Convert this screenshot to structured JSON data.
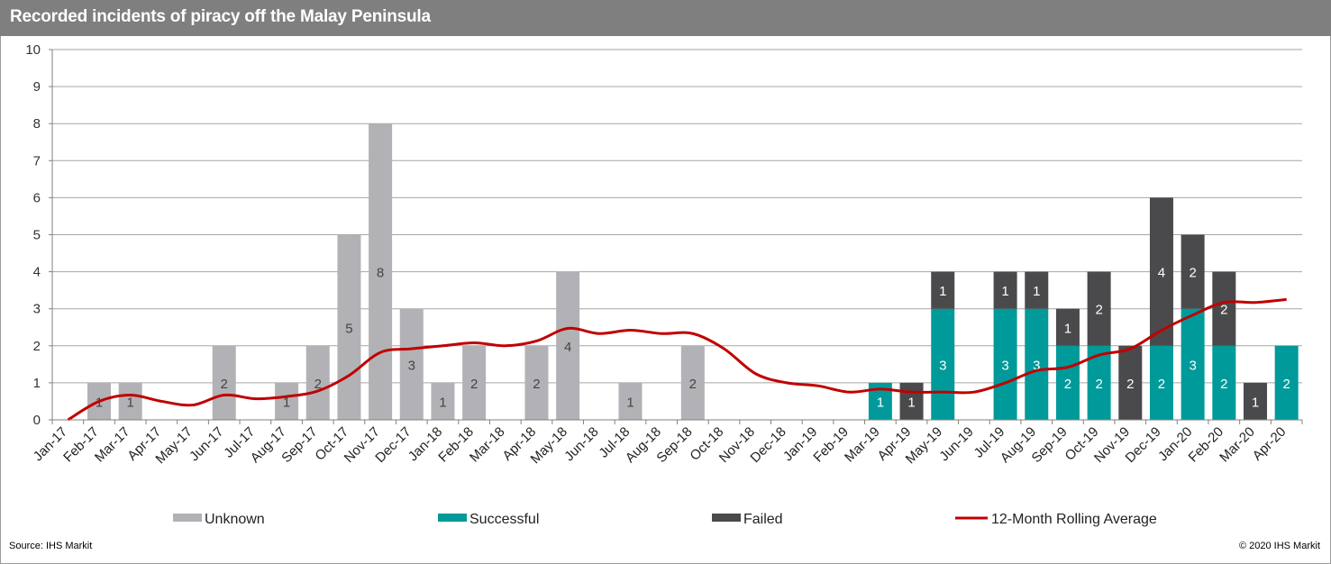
{
  "header": {
    "title": "Recorded incidents of piracy off the Malay Peninsula"
  },
  "footer": {
    "source": "Source: IHS Markit",
    "copyright": "© 2020 IHS Markit"
  },
  "colors": {
    "unknown": "#b2b2b6",
    "successful": "#009a9a",
    "failed": "#4a4a4c",
    "rolling": "#c00000",
    "grid": "#a6a6a6"
  },
  "chart_data": {
    "type": "bar",
    "stacked": true,
    "title": "Recorded incidents of piracy off the Malay Peninsula",
    "ylim": [
      0,
      10
    ],
    "yticks": [
      0,
      1,
      2,
      3,
      4,
      5,
      6,
      7,
      8,
      9,
      10
    ],
    "grid": true,
    "legend_placement": "bottom",
    "categories": [
      "Jan-17",
      "Feb-17",
      "Mar-17",
      "Apr-17",
      "May-17",
      "Jun-17",
      "Jul-17",
      "Aug-17",
      "Sep-17",
      "Oct-17",
      "Nov-17",
      "Dec-17",
      "Jan-18",
      "Feb-18",
      "Mar-18",
      "Apr-18",
      "May-18",
      "Jun-18",
      "Jul-18",
      "Aug-18",
      "Sep-18",
      "Oct-18",
      "Nov-18",
      "Dec-18",
      "Jan-19",
      "Feb-19",
      "Mar-19",
      "Apr-19",
      "May-19",
      "Jun-19",
      "Jul-19",
      "Aug-19",
      "Sep-19",
      "Oct-19",
      "Nov-19",
      "Dec-19",
      "Jan-20",
      "Feb-20",
      "Mar-20",
      "Apr-20"
    ],
    "series": [
      {
        "name": "Unknown",
        "type": "bar",
        "color": "#b2b2b6",
        "values": [
          0,
          1,
          1,
          0,
          0,
          2,
          0,
          1,
          2,
          5,
          8,
          3,
          1,
          2,
          0,
          2,
          4,
          0,
          1,
          0,
          2,
          0,
          0,
          0,
          0,
          0,
          0,
          0,
          0,
          0,
          0,
          0,
          0,
          0,
          0,
          0,
          0,
          0,
          0,
          0
        ]
      },
      {
        "name": "Successful",
        "type": "bar",
        "color": "#009a9a",
        "values": [
          0,
          0,
          0,
          0,
          0,
          0,
          0,
          0,
          0,
          0,
          0,
          0,
          0,
          0,
          0,
          0,
          0,
          0,
          0,
          0,
          0,
          0,
          0,
          0,
          0,
          0,
          1,
          0,
          3,
          0,
          3,
          3,
          2,
          2,
          0,
          2,
          3,
          2,
          0,
          2
        ]
      },
      {
        "name": "Failed",
        "type": "bar",
        "color": "#4a4a4c",
        "values": [
          0,
          0,
          0,
          0,
          0,
          0,
          0,
          0,
          0,
          0,
          0,
          0,
          0,
          0,
          0,
          0,
          0,
          0,
          0,
          0,
          0,
          0,
          0,
          0,
          0,
          0,
          0,
          1,
          1,
          0,
          1,
          1,
          1,
          2,
          2,
          4,
          2,
          2,
          1,
          0
        ]
      },
      {
        "name": "12-Month Rolling Average",
        "type": "line",
        "color": "#c00000",
        "values": [
          0,
          0.5,
          0.67,
          0.5,
          0.4,
          0.67,
          0.57,
          0.63,
          0.78,
          1.2,
          1.82,
          1.92,
          2.0,
          2.08,
          2.0,
          2.13,
          2.47,
          2.33,
          2.42,
          2.33,
          2.33,
          1.92,
          1.25,
          1.0,
          0.92,
          0.75,
          0.83,
          0.75,
          0.75,
          0.75,
          1.0,
          1.33,
          1.42,
          1.75,
          1.92,
          2.42,
          2.83,
          3.17,
          3.17,
          3.25
        ]
      }
    ]
  }
}
